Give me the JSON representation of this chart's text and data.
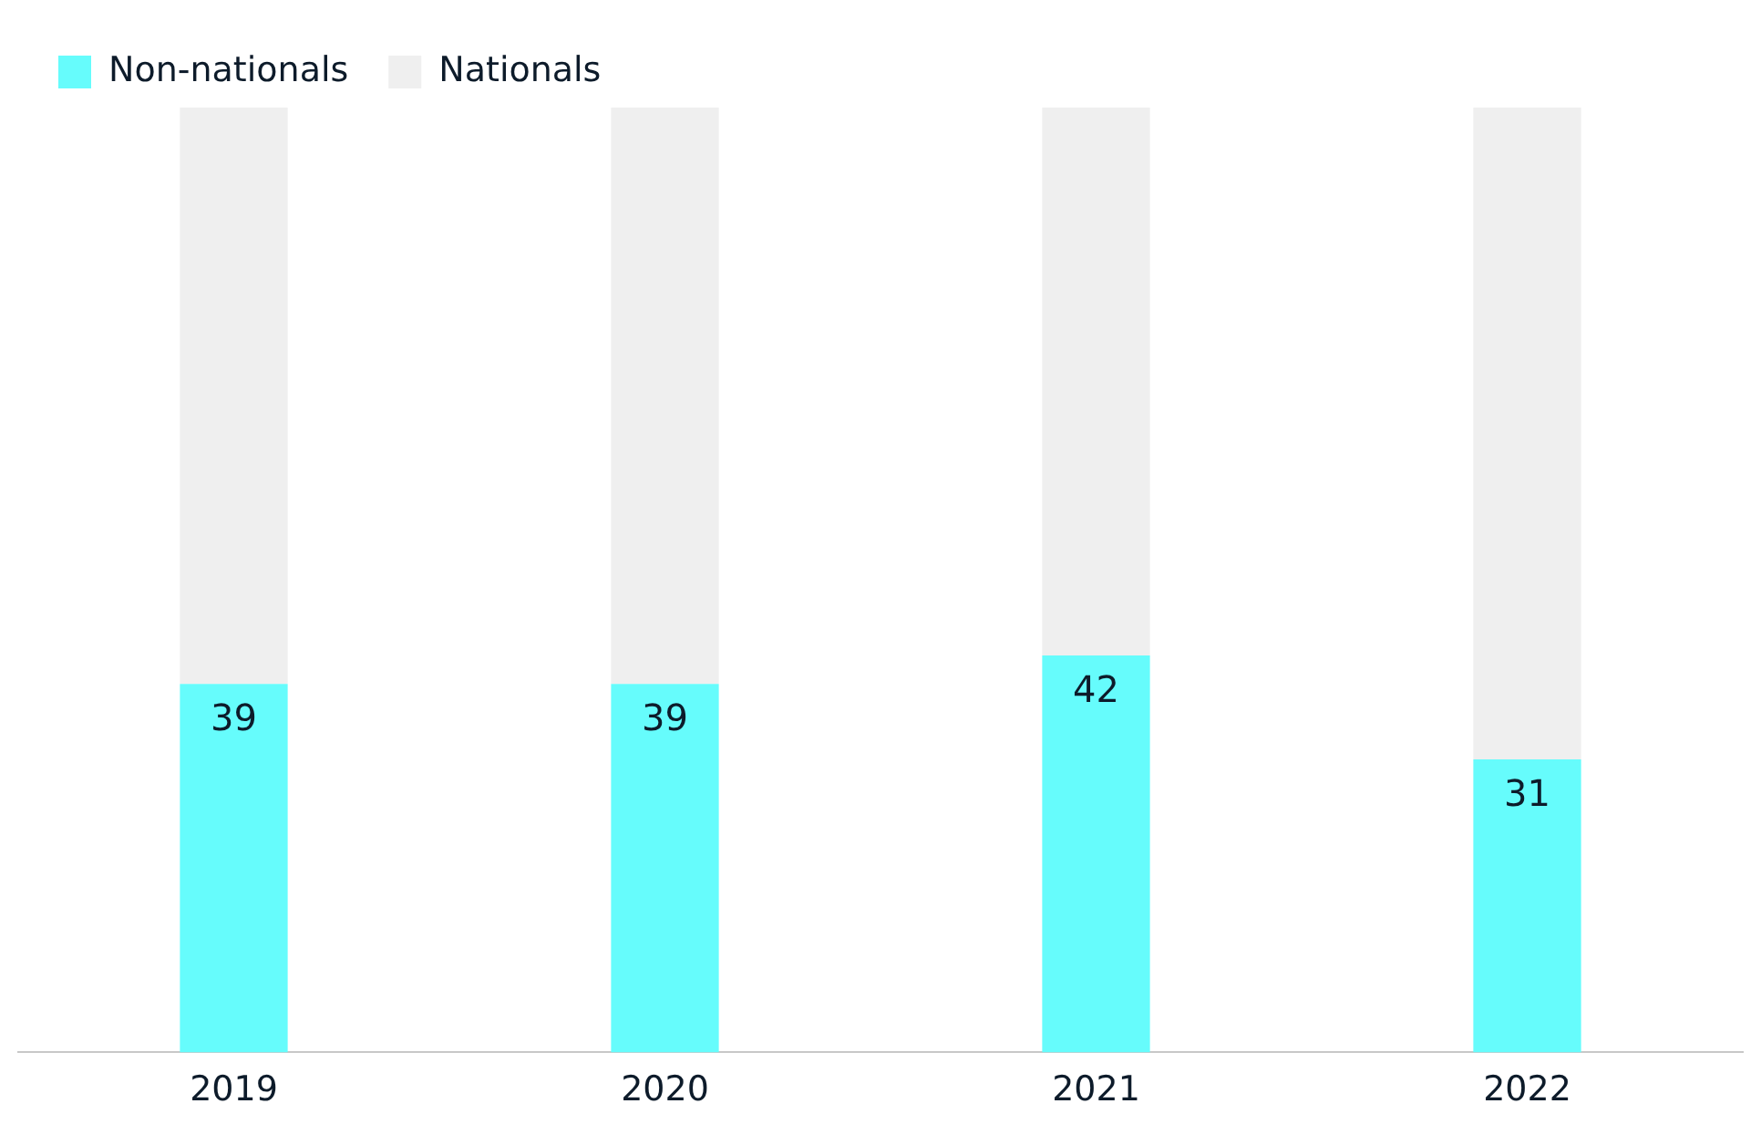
{
  "chart_data": {
    "type": "bar",
    "stacked": true,
    "categories": [
      "2019",
      "2020",
      "2021",
      "2022"
    ],
    "series": [
      {
        "name": "Non-nationals",
        "color": "#66fcfc",
        "values": [
          39,
          39,
          42,
          31
        ],
        "value_labels": [
          "39",
          "39",
          "42",
          "31"
        ]
      },
      {
        "name": "Nationals",
        "color": "#efefef",
        "values": [
          61,
          61,
          58,
          69
        ]
      }
    ],
    "ylim": [
      0,
      100
    ],
    "tick_labels": "x",
    "legend": "top left"
  }
}
